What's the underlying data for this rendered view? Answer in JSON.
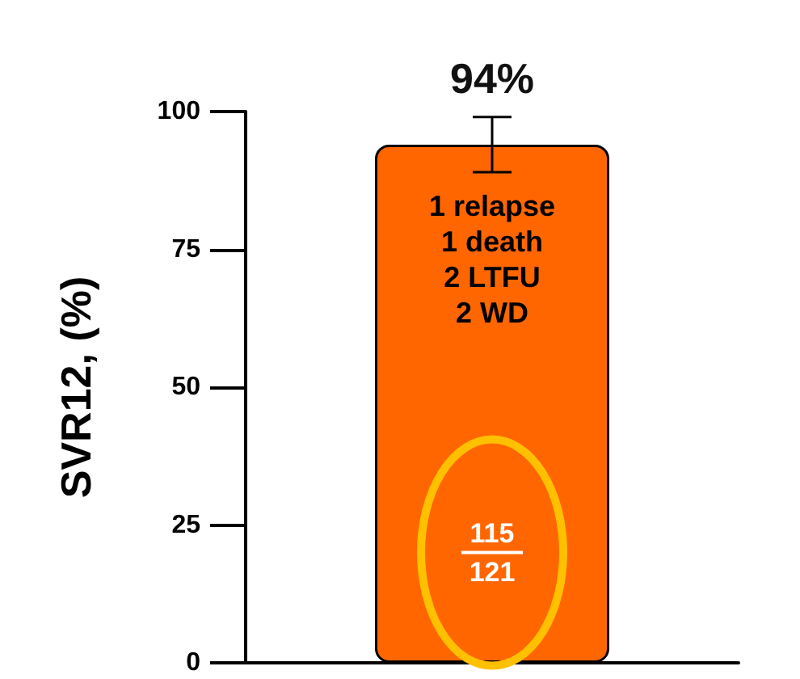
{
  "chart_data": {
    "type": "bar",
    "categories": [
      null
    ],
    "values": [
      94
    ],
    "value_labels": [
      "94%"
    ],
    "errors": [
      [
        89,
        99
      ]
    ],
    "color": "#ff6600",
    "ylabel": "SVR12, (%)",
    "ylim": [
      0,
      100
    ],
    "yticks": [
      0,
      25,
      50,
      75,
      100
    ],
    "grid": false,
    "annotations": [
      "1 relapse\n1 death\n2 LTFU\n2 WD",
      "115\n121"
    ]
  }
}
